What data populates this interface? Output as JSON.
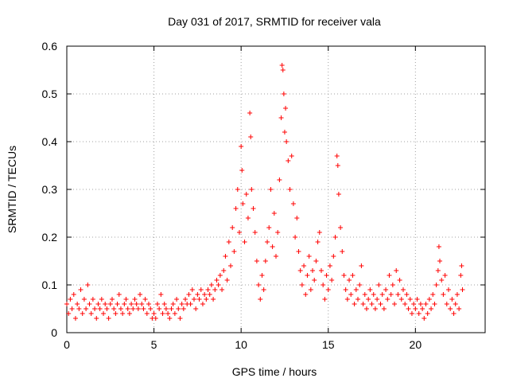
{
  "chart_data": {
    "type": "scatter",
    "title": "Day 031 of 2017, SRMTID for receiver vala",
    "xlabel": "GPS time / hours",
    "ylabel": "SRMTID / TECUs",
    "xlim": [
      0,
      24
    ],
    "ylim": [
      0,
      0.6
    ],
    "xticks": [
      0,
      5,
      10,
      15,
      20
    ],
    "xtick_labels": [
      "0",
      "5",
      "10",
      "15",
      "20"
    ],
    "yticks": [
      0,
      0.1,
      0.2,
      0.3,
      0.4,
      0.5,
      0.6
    ],
    "ytick_labels": [
      "0",
      "0.1",
      "0.2",
      "0.3",
      "0.4",
      "0.5",
      "0.6"
    ],
    "grid": true,
    "marker": "+",
    "color": "#ff0000",
    "series": [
      {
        "name": "SRMTID",
        "points": [
          [
            0.0,
            0.06
          ],
          [
            0.1,
            0.04
          ],
          [
            0.2,
            0.07
          ],
          [
            0.3,
            0.05
          ],
          [
            0.4,
            0.08
          ],
          [
            0.5,
            0.03
          ],
          [
            0.6,
            0.06
          ],
          [
            0.7,
            0.05
          ],
          [
            0.8,
            0.09
          ],
          [
            0.9,
            0.04
          ],
          [
            1.0,
            0.07
          ],
          [
            1.1,
            0.05
          ],
          [
            1.2,
            0.1
          ],
          [
            1.3,
            0.06
          ],
          [
            1.4,
            0.04
          ],
          [
            1.5,
            0.07
          ],
          [
            1.6,
            0.05
          ],
          [
            1.7,
            0.03
          ],
          [
            1.8,
            0.06
          ],
          [
            1.9,
            0.05
          ],
          [
            2.0,
            0.07
          ],
          [
            2.1,
            0.04
          ],
          [
            2.2,
            0.06
          ],
          [
            2.3,
            0.05
          ],
          [
            2.4,
            0.03
          ],
          [
            2.5,
            0.06
          ],
          [
            2.6,
            0.07
          ],
          [
            2.7,
            0.05
          ],
          [
            2.8,
            0.04
          ],
          [
            2.9,
            0.06
          ],
          [
            3.0,
            0.08
          ],
          [
            3.1,
            0.05
          ],
          [
            3.2,
            0.04
          ],
          [
            3.3,
            0.06
          ],
          [
            3.4,
            0.07
          ],
          [
            3.5,
            0.05
          ],
          [
            3.6,
            0.04
          ],
          [
            3.7,
            0.06
          ],
          [
            3.8,
            0.05
          ],
          [
            3.9,
            0.07
          ],
          [
            4.0,
            0.06
          ],
          [
            4.1,
            0.05
          ],
          [
            4.2,
            0.08
          ],
          [
            4.3,
            0.06
          ],
          [
            4.4,
            0.05
          ],
          [
            4.5,
            0.07
          ],
          [
            4.6,
            0.04
          ],
          [
            4.7,
            0.06
          ],
          [
            4.8,
            0.05
          ],
          [
            4.9,
            0.03
          ],
          [
            5.0,
            0.04
          ],
          [
            5.1,
            0.03
          ],
          [
            5.2,
            0.06
          ],
          [
            5.3,
            0.05
          ],
          [
            5.4,
            0.08
          ],
          [
            5.5,
            0.04
          ],
          [
            5.6,
            0.06
          ],
          [
            5.7,
            0.05
          ],
          [
            5.8,
            0.04
          ],
          [
            5.9,
            0.03
          ],
          [
            6.0,
            0.05
          ],
          [
            6.1,
            0.06
          ],
          [
            6.2,
            0.04
          ],
          [
            6.3,
            0.07
          ],
          [
            6.4,
            0.05
          ],
          [
            6.5,
            0.03
          ],
          [
            6.6,
            0.06
          ],
          [
            6.7,
            0.05
          ],
          [
            6.8,
            0.07
          ],
          [
            6.9,
            0.06
          ],
          [
            7.0,
            0.08
          ],
          [
            7.1,
            0.06
          ],
          [
            7.2,
            0.09
          ],
          [
            7.3,
            0.07
          ],
          [
            7.4,
            0.05
          ],
          [
            7.5,
            0.08
          ],
          [
            7.6,
            0.07
          ],
          [
            7.7,
            0.09
          ],
          [
            7.8,
            0.06
          ],
          [
            7.9,
            0.08
          ],
          [
            8.0,
            0.07
          ],
          [
            8.1,
            0.09
          ],
          [
            8.2,
            0.08
          ],
          [
            8.3,
            0.1
          ],
          [
            8.4,
            0.07
          ],
          [
            8.5,
            0.09
          ],
          [
            8.6,
            0.11
          ],
          [
            8.7,
            0.1
          ],
          [
            8.8,
            0.12
          ],
          [
            8.9,
            0.09
          ],
          [
            9.0,
            0.13
          ],
          [
            9.1,
            0.16
          ],
          [
            9.2,
            0.11
          ],
          [
            9.3,
            0.19
          ],
          [
            9.4,
            0.14
          ],
          [
            9.5,
            0.22
          ],
          [
            9.6,
            0.17
          ],
          [
            9.7,
            0.26
          ],
          [
            9.8,
            0.3
          ],
          [
            9.9,
            0.21
          ],
          [
            10.0,
            0.39
          ],
          [
            10.05,
            0.34
          ],
          [
            10.1,
            0.27
          ],
          [
            10.2,
            0.19
          ],
          [
            10.3,
            0.29
          ],
          [
            10.4,
            0.24
          ],
          [
            10.5,
            0.46
          ],
          [
            10.55,
            0.41
          ],
          [
            10.6,
            0.3
          ],
          [
            10.7,
            0.26
          ],
          [
            10.8,
            0.21
          ],
          [
            10.9,
            0.15
          ],
          [
            11.0,
            0.1
          ],
          [
            11.1,
            0.07
          ],
          [
            11.2,
            0.12
          ],
          [
            11.3,
            0.09
          ],
          [
            11.4,
            0.15
          ],
          [
            11.5,
            0.19
          ],
          [
            11.6,
            0.22
          ],
          [
            11.7,
            0.3
          ],
          [
            11.8,
            0.18
          ],
          [
            11.9,
            0.25
          ],
          [
            12.0,
            0.16
          ],
          [
            12.1,
            0.21
          ],
          [
            12.2,
            0.32
          ],
          [
            12.3,
            0.45
          ],
          [
            12.35,
            0.56
          ],
          [
            12.4,
            0.55
          ],
          [
            12.45,
            0.5
          ],
          [
            12.5,
            0.42
          ],
          [
            12.55,
            0.47
          ],
          [
            12.6,
            0.4
          ],
          [
            12.7,
            0.36
          ],
          [
            12.8,
            0.3
          ],
          [
            12.9,
            0.37
          ],
          [
            13.0,
            0.27
          ],
          [
            13.1,
            0.2
          ],
          [
            13.2,
            0.24
          ],
          [
            13.3,
            0.17
          ],
          [
            13.4,
            0.13
          ],
          [
            13.5,
            0.1
          ],
          [
            13.6,
            0.14
          ],
          [
            13.7,
            0.08
          ],
          [
            13.8,
            0.12
          ],
          [
            13.9,
            0.16
          ],
          [
            14.0,
            0.09
          ],
          [
            14.1,
            0.13
          ],
          [
            14.2,
            0.11
          ],
          [
            14.3,
            0.15
          ],
          [
            14.4,
            0.19
          ],
          [
            14.5,
            0.21
          ],
          [
            14.6,
            0.13
          ],
          [
            14.7,
            0.1
          ],
          [
            14.8,
            0.07
          ],
          [
            14.9,
            0.12
          ],
          [
            15.0,
            0.09
          ],
          [
            15.1,
            0.14
          ],
          [
            15.2,
            0.11
          ],
          [
            15.3,
            0.16
          ],
          [
            15.4,
            0.2
          ],
          [
            15.5,
            0.37
          ],
          [
            15.55,
            0.35
          ],
          [
            15.6,
            0.29
          ],
          [
            15.7,
            0.22
          ],
          [
            15.8,
            0.17
          ],
          [
            15.9,
            0.12
          ],
          [
            16.0,
            0.09
          ],
          [
            16.1,
            0.07
          ],
          [
            16.2,
            0.11
          ],
          [
            16.3,
            0.08
          ],
          [
            16.4,
            0.12
          ],
          [
            16.5,
            0.06
          ],
          [
            16.6,
            0.09
          ],
          [
            16.7,
            0.07
          ],
          [
            16.8,
            0.1
          ],
          [
            16.9,
            0.14
          ],
          [
            17.0,
            0.06
          ],
          [
            17.1,
            0.08
          ],
          [
            17.2,
            0.05
          ],
          [
            17.3,
            0.07
          ],
          [
            17.4,
            0.09
          ],
          [
            17.5,
            0.06
          ],
          [
            17.6,
            0.08
          ],
          [
            17.7,
            0.05
          ],
          [
            17.8,
            0.07
          ],
          [
            17.9,
            0.1
          ],
          [
            18.0,
            0.06
          ],
          [
            18.1,
            0.08
          ],
          [
            18.2,
            0.05
          ],
          [
            18.3,
            0.09
          ],
          [
            18.4,
            0.07
          ],
          [
            18.5,
            0.12
          ],
          [
            18.6,
            0.08
          ],
          [
            18.7,
            0.1
          ],
          [
            18.8,
            0.06
          ],
          [
            18.9,
            0.13
          ],
          [
            19.0,
            0.08
          ],
          [
            19.1,
            0.11
          ],
          [
            19.2,
            0.07
          ],
          [
            19.3,
            0.09
          ],
          [
            19.4,
            0.06
          ],
          [
            19.5,
            0.08
          ],
          [
            19.6,
            0.05
          ],
          [
            19.7,
            0.07
          ],
          [
            19.8,
            0.04
          ],
          [
            19.9,
            0.06
          ],
          [
            20.0,
            0.05
          ],
          [
            20.1,
            0.07
          ],
          [
            20.2,
            0.04
          ],
          [
            20.3,
            0.06
          ],
          [
            20.4,
            0.05
          ],
          [
            20.5,
            0.03
          ],
          [
            20.6,
            0.06
          ],
          [
            20.7,
            0.04
          ],
          [
            20.8,
            0.07
          ],
          [
            20.9,
            0.05
          ],
          [
            21.0,
            0.08
          ],
          [
            21.1,
            0.06
          ],
          [
            21.2,
            0.1
          ],
          [
            21.3,
            0.13
          ],
          [
            21.35,
            0.18
          ],
          [
            21.4,
            0.15
          ],
          [
            21.5,
            0.11
          ],
          [
            21.6,
            0.08
          ],
          [
            21.7,
            0.12
          ],
          [
            21.8,
            0.06
          ],
          [
            21.9,
            0.09
          ],
          [
            22.0,
            0.05
          ],
          [
            22.1,
            0.07
          ],
          [
            22.2,
            0.04
          ],
          [
            22.3,
            0.06
          ],
          [
            22.4,
            0.08
          ],
          [
            22.5,
            0.05
          ],
          [
            22.6,
            0.12
          ],
          [
            22.65,
            0.14
          ],
          [
            22.7,
            0.09
          ]
        ]
      }
    ]
  }
}
